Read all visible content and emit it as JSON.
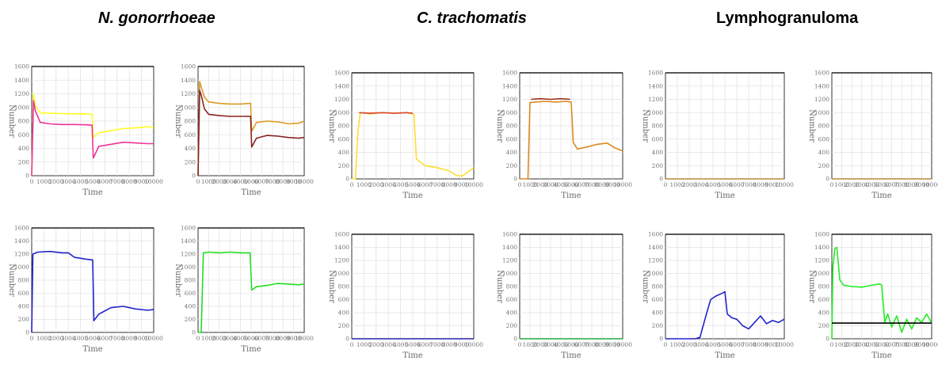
{
  "group_titles": [
    "N. gonorrhoeae",
    "C. trachomatis",
    "Lymphogranuloma"
  ],
  "chart_data": [
    {
      "type": "line",
      "group": "N. gonorrhoeae",
      "row": 1,
      "col": 1,
      "xlabel": "Time",
      "ylabel": "Number",
      "xlim": [
        0,
        10000
      ],
      "ylim": [
        0,
        1600
      ],
      "xticks": [
        "0",
        "1000",
        "2000",
        "3000",
        "4000",
        "5000",
        "6000",
        "7000",
        "8000",
        "9000",
        "10000"
      ],
      "yticks": [
        "0",
        "200",
        "400",
        "600",
        "800",
        "1000",
        "1200",
        "1400",
        "1600"
      ],
      "series": [
        {
          "color": "#ffff22",
          "x": [
            0,
            150,
            300,
            700,
            1500,
            2500,
            3500,
            4500,
            4950,
            5050,
            5500,
            6500,
            7500,
            8500,
            9500,
            10000
          ],
          "y": [
            0,
            1200,
            1020,
            920,
            915,
            910,
            905,
            905,
            900,
            560,
            630,
            660,
            690,
            700,
            720,
            700
          ]
        },
        {
          "color": "#ee3399",
          "x": [
            0,
            150,
            300,
            700,
            1500,
            2500,
            3500,
            4500,
            4950,
            5050,
            5500,
            6500,
            7500,
            8500,
            9500,
            10000
          ],
          "y": [
            0,
            1100,
            950,
            780,
            760,
            750,
            750,
            745,
            740,
            260,
            430,
            460,
            490,
            480,
            470,
            470
          ]
        }
      ]
    },
    {
      "type": "line",
      "group": "N. gonorrhoeae",
      "row": 1,
      "col": 2,
      "xlabel": "Time",
      "ylabel": "Number",
      "xlim": [
        0,
        10000
      ],
      "ylim": [
        0,
        1600
      ],
      "xticks": [
        "0",
        "1000",
        "2000",
        "3000",
        "4000",
        "5000",
        "6000",
        "7000",
        "8000",
        "9000",
        "10000"
      ],
      "yticks": [
        "0",
        "200",
        "400",
        "600",
        "800",
        "1000",
        "1200",
        "1400",
        "1600"
      ],
      "series": [
        {
          "color": "#dd9922",
          "x": [
            0,
            150,
            300,
            600,
            1000,
            2000,
            3000,
            4000,
            4950,
            5050,
            5500,
            6500,
            7500,
            8500,
            9500,
            10000
          ],
          "y": [
            0,
            1380,
            1300,
            1150,
            1080,
            1060,
            1050,
            1050,
            1060,
            650,
            780,
            800,
            790,
            760,
            770,
            800
          ]
        },
        {
          "color": "#882222",
          "x": [
            0,
            150,
            300,
            600,
            1000,
            2000,
            3000,
            4000,
            4950,
            5050,
            5500,
            6500,
            7500,
            8500,
            9500,
            10000
          ],
          "y": [
            0,
            1250,
            1180,
            980,
            900,
            880,
            870,
            870,
            870,
            420,
            550,
            590,
            580,
            560,
            550,
            560
          ]
        }
      ]
    },
    {
      "type": "line",
      "group": "C. trachomatis",
      "row": 1,
      "col": 1,
      "xlabel": "Time",
      "ylabel": "Number",
      "xlim": [
        0,
        10000
      ],
      "ylim": [
        0,
        1600
      ],
      "xticks": [
        "0",
        "1000",
        "2000",
        "3000",
        "4000",
        "5000",
        "6000",
        "7000",
        "8000",
        "9000",
        "10000"
      ],
      "yticks": [
        "0",
        "200",
        "400",
        "600",
        "800",
        "1000",
        "1200",
        "1400",
        "1600"
      ],
      "series": [
        {
          "color": "#ffdd33",
          "x": [
            0,
            300,
            500,
            700,
            1500,
            2500,
            3500,
            4500,
            5100,
            5300,
            6000,
            7000,
            8000,
            8500,
            9000,
            9500,
            10000
          ],
          "y": [
            0,
            0,
            700,
            1000,
            980,
            1000,
            990,
            1000,
            980,
            300,
            200,
            170,
            120,
            60,
            40,
            100,
            170
          ]
        },
        {
          "color": "#dd4433",
          "x": [
            600,
            1500,
            2500,
            3500,
            4500,
            5000
          ],
          "y": [
            1000,
            990,
            1000,
            990,
            1000,
            990
          ]
        }
      ]
    },
    {
      "type": "line",
      "group": "C. trachomatis",
      "row": 1,
      "col": 2,
      "xlabel": "Time",
      "ylabel": "Number",
      "xlim": [
        0,
        10000
      ],
      "ylim": [
        0,
        1600
      ],
      "xticks": [
        "0",
        "1000",
        "2000",
        "3000",
        "4000",
        "5000",
        "6000",
        "7000",
        "8000",
        "9000",
        "10000"
      ],
      "yticks": [
        "0",
        "200",
        "400",
        "600",
        "800",
        "1000",
        "1200",
        "1400",
        "1600"
      ],
      "series": [
        {
          "color": "#dd8822",
          "x": [
            0,
            800,
            1000,
            1500,
            2500,
            3500,
            4500,
            5000,
            5200,
            5600,
            6500,
            7500,
            8500,
            9200,
            10000
          ],
          "y": [
            0,
            0,
            1150,
            1160,
            1170,
            1160,
            1170,
            1160,
            550,
            450,
            480,
            520,
            540,
            470,
            420
          ]
        },
        {
          "color": "#993322",
          "x": [
            1100,
            2000,
            3000,
            4000,
            4900
          ],
          "y": [
            1200,
            1210,
            1200,
            1210,
            1200
          ]
        }
      ]
    },
    {
      "type": "line",
      "group": "Lymphogranuloma",
      "row": 1,
      "col": 1,
      "xlabel": "Time",
      "ylabel": "Number",
      "xlim": [
        0,
        10000
      ],
      "ylim": [
        0,
        1600
      ],
      "xticks": [
        "0",
        "1000",
        "2000",
        "3000",
        "4000",
        "5000",
        "6000",
        "7000",
        "8000",
        "9000",
        "10000"
      ],
      "yticks": [
        "0",
        "200",
        "400",
        "600",
        "800",
        "1000",
        "1200",
        "1400",
        "1600"
      ],
      "series": [
        {
          "color": "#bb8833",
          "x": [
            0,
            10000
          ],
          "y": [
            0,
            0
          ]
        }
      ]
    },
    {
      "type": "line",
      "group": "Lymphogranuloma",
      "row": 1,
      "col": 2,
      "xlabel": "Time",
      "ylabel": "Number",
      "xlim": [
        0,
        10000
      ],
      "ylim": [
        0,
        1600
      ],
      "xticks": [
        "0",
        "1000",
        "2000",
        "3000",
        "4000",
        "5000",
        "6000",
        "7000",
        "8000",
        "9000",
        "10000"
      ],
      "yticks": [
        "0",
        "200",
        "400",
        "600",
        "800",
        "1000",
        "1200",
        "1400",
        "1600"
      ],
      "series": [
        {
          "color": "#bb8833",
          "x": [
            0,
            10000
          ],
          "y": [
            0,
            0
          ]
        }
      ]
    },
    {
      "type": "line",
      "group": "N. gonorrhoeae",
      "row": 2,
      "col": 1,
      "xlabel": "Time",
      "ylabel": "Number",
      "xlim": [
        0,
        10000
      ],
      "ylim": [
        0,
        1600
      ],
      "xticks": [
        "0",
        "1000",
        "2000",
        "3000",
        "4000",
        "5000",
        "6000",
        "7000",
        "8000",
        "9000",
        "10000"
      ],
      "yticks": [
        "0",
        "200",
        "400",
        "600",
        "800",
        "1000",
        "1200",
        "1400",
        "1600"
      ],
      "series": [
        {
          "color": "#2222cc",
          "x": [
            0,
            100,
            500,
            1500,
            2500,
            3000,
            3500,
            4500,
            5000,
            5100,
            5500,
            6500,
            7500,
            8500,
            9500,
            10000
          ],
          "y": [
            0,
            1200,
            1230,
            1240,
            1220,
            1220,
            1150,
            1120,
            1110,
            180,
            280,
            380,
            400,
            360,
            340,
            350
          ]
        }
      ]
    },
    {
      "type": "line",
      "group": "N. gonorrhoeae",
      "row": 2,
      "col": 2,
      "xlabel": "Time",
      "ylabel": "Number",
      "xlim": [
        0,
        10000
      ],
      "ylim": [
        0,
        1600
      ],
      "xticks": [
        "0",
        "1000",
        "2000",
        "3000",
        "4000",
        "5000",
        "6000",
        "7000",
        "8000",
        "9000",
        "10000"
      ],
      "yticks": [
        "0",
        "200",
        "400",
        "600",
        "800",
        "1000",
        "1200",
        "1400",
        "1600"
      ],
      "series": [
        {
          "color": "#22dd22",
          "x": [
            0,
            300,
            500,
            1000,
            2000,
            3000,
            4000,
            4900,
            5050,
            5500,
            6500,
            7500,
            8500,
            9500,
            10000
          ],
          "y": [
            0,
            0,
            1220,
            1230,
            1220,
            1230,
            1220,
            1220,
            650,
            700,
            720,
            750,
            740,
            730,
            740
          ]
        }
      ]
    },
    {
      "type": "line",
      "group": "C. trachomatis",
      "row": 2,
      "col": 1,
      "xlabel": "Time",
      "ylabel": "Number",
      "xlim": [
        0,
        10000
      ],
      "ylim": [
        0,
        1600
      ],
      "xticks": [
        "0",
        "1000",
        "2000",
        "3000",
        "4000",
        "5000",
        "6000",
        "7000",
        "8000",
        "9000",
        "10000"
      ],
      "yticks": [
        "0",
        "200",
        "400",
        "600",
        "800",
        "1000",
        "1200",
        "1400",
        "1600"
      ],
      "series": [
        {
          "color": "#2222aa",
          "x": [
            0,
            10000
          ],
          "y": [
            0,
            0
          ]
        }
      ]
    },
    {
      "type": "line",
      "group": "C. trachomatis",
      "row": 2,
      "col": 2,
      "xlabel": "Time",
      "ylabel": "Number",
      "xlim": [
        0,
        10000
      ],
      "ylim": [
        0,
        1600
      ],
      "xticks": [
        "0",
        "1000",
        "2000",
        "3000",
        "4000",
        "5000",
        "6000",
        "7000",
        "8000",
        "9000",
        "10000"
      ],
      "yticks": [
        "0",
        "200",
        "400",
        "600",
        "800",
        "1000",
        "1200",
        "1400",
        "1600"
      ],
      "series": [
        {
          "color": "#22aa44",
          "x": [
            0,
            10000
          ],
          "y": [
            0,
            0
          ]
        }
      ]
    },
    {
      "type": "line",
      "group": "Lymphogranuloma",
      "row": 2,
      "col": 1,
      "xlabel": "Time",
      "ylabel": "Number",
      "xlim": [
        0,
        10000
      ],
      "ylim": [
        0,
        1600
      ],
      "xticks": [
        "0",
        "1000",
        "2000",
        "3000",
        "4000",
        "5000",
        "6000",
        "7000",
        "8000",
        "9000",
        "10000"
      ],
      "yticks": [
        "0",
        "200",
        "400",
        "600",
        "800",
        "1000",
        "1200",
        "1400",
        "1600"
      ],
      "series": [
        {
          "color": "#2222cc",
          "x": [
            0,
            2500,
            2900,
            3400,
            3800,
            4200,
            4800,
            5000,
            5200,
            5600,
            6000,
            6500,
            7000,
            7500,
            8000,
            8500,
            9000,
            9500,
            10000
          ],
          "y": [
            0,
            0,
            20,
            350,
            600,
            650,
            700,
            720,
            380,
            320,
            300,
            200,
            150,
            250,
            350,
            230,
            280,
            250,
            300
          ]
        }
      ]
    },
    {
      "type": "line",
      "group": "Lymphogranuloma",
      "row": 2,
      "col": 2,
      "xlabel": "Time",
      "ylabel": "Number",
      "xlim": [
        0,
        10000
      ],
      "ylim": [
        0,
        1600
      ],
      "xticks": [
        "0",
        "1000",
        "2000",
        "3000",
        "4000",
        "5000",
        "6000",
        "7000",
        "8000",
        "9000",
        "10000"
      ],
      "yticks": [
        "0",
        "200",
        "400",
        "600",
        "800",
        "1000",
        "1200",
        "1400",
        "1600"
      ],
      "series": [
        {
          "color": "#22ee22",
          "x": [
            0,
            100,
            300,
            500,
            800,
            1200,
            2000,
            3000,
            4000,
            4800,
            5000,
            5300,
            5600,
            6000,
            6500,
            7000,
            7500,
            8000,
            8500,
            9000,
            9500,
            10000
          ],
          "y": [
            0,
            1100,
            1380,
            1400,
            900,
            820,
            800,
            790,
            820,
            840,
            820,
            250,
            380,
            180,
            350,
            100,
            300,
            150,
            320,
            250,
            380,
            240
          ]
        },
        {
          "color": "#000000",
          "x": [
            0,
            10000
          ],
          "y": [
            240,
            240
          ]
        }
      ]
    }
  ]
}
